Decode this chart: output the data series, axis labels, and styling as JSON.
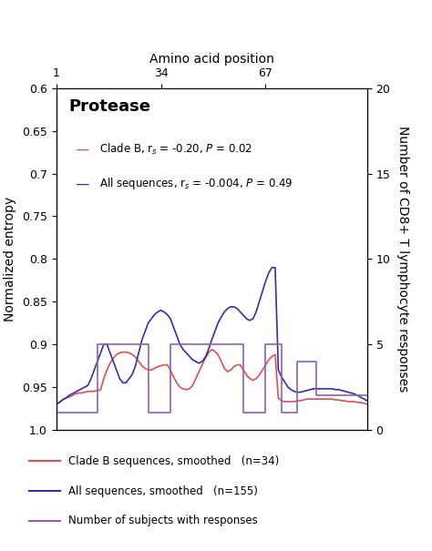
{
  "title": "Protease",
  "xlabel_top": "Amino acid position",
  "ylabel_left": "Normalized entropy",
  "ylabel_right": "Number of CD8+ T lymphocyte responses",
  "ylim_left": [
    1.0,
    0.6
  ],
  "ylim_right": [
    0,
    20
  ],
  "xlim": [
    1,
    99
  ],
  "xticks_top": [
    1,
    34,
    67
  ],
  "yticks_left": [
    0.6,
    0.65,
    0.7,
    0.75,
    0.8,
    0.85,
    0.9,
    0.95,
    1.0
  ],
  "yticks_right": [
    0,
    5,
    10,
    15,
    20
  ],
  "legend_inside": [
    {
      "label": "Clade B, r_s = -0.20, P = 0.02",
      "color": "#e05050"
    },
    {
      "label": "All sequences, r_s = -0.004, P = 0.49",
      "color": "#3030b0"
    }
  ],
  "legend_below": [
    {
      "label": "Clade B sequences, smoothed   (n=34)",
      "color": "#e05050"
    },
    {
      "label": "All sequences, smoothed   (n=155)",
      "color": "#3030b0"
    },
    {
      "label": "Number of subjects with responses",
      "color": "#9060b0"
    }
  ],
  "clade_b_x": [
    1,
    2,
    3,
    4,
    5,
    6,
    7,
    8,
    9,
    10,
    11,
    12,
    13,
    14,
    15,
    16,
    17,
    18,
    19,
    20,
    21,
    22,
    23,
    24,
    25,
    26,
    27,
    28,
    29,
    30,
    31,
    32,
    33,
    34,
    35,
    36,
    37,
    38,
    39,
    40,
    41,
    42,
    43,
    44,
    45,
    46,
    47,
    48,
    49,
    50,
    51,
    52,
    53,
    54,
    55,
    56,
    57,
    58,
    59,
    60,
    61,
    62,
    63,
    64,
    65,
    66,
    67,
    68,
    69,
    70,
    71,
    72,
    73,
    74,
    75,
    76,
    77,
    78,
    79,
    80,
    81,
    82,
    83,
    84,
    85,
    86,
    87,
    88,
    89,
    90,
    91,
    92,
    93,
    94,
    95,
    96,
    97,
    98,
    99
  ],
  "clade_b_y": [
    0.97,
    0.968,
    0.965,
    0.963,
    0.962,
    0.96,
    0.958,
    0.957,
    0.957,
    0.956,
    0.955,
    0.955,
    0.955,
    0.954,
    0.953,
    0.94,
    0.93,
    0.922,
    0.916,
    0.912,
    0.91,
    0.909,
    0.909,
    0.91,
    0.912,
    0.915,
    0.92,
    0.925,
    0.928,
    0.93,
    0.93,
    0.928,
    0.926,
    0.925,
    0.924,
    0.924,
    0.93,
    0.938,
    0.945,
    0.95,
    0.952,
    0.953,
    0.952,
    0.948,
    0.94,
    0.932,
    0.924,
    0.916,
    0.91,
    0.906,
    0.908,
    0.912,
    0.92,
    0.928,
    0.932,
    0.93,
    0.926,
    0.924,
    0.924,
    0.93,
    0.936,
    0.94,
    0.942,
    0.94,
    0.936,
    0.93,
    0.924,
    0.918,
    0.914,
    0.912,
    0.963,
    0.966,
    0.967,
    0.967,
    0.967,
    0.967,
    0.966,
    0.966,
    0.965,
    0.964,
    0.964,
    0.964,
    0.964,
    0.964,
    0.964,
    0.964,
    0.964,
    0.964,
    0.965,
    0.965,
    0.966,
    0.966,
    0.967,
    0.967,
    0.967,
    0.968,
    0.968,
    0.969,
    0.97
  ],
  "all_seq_x": [
    1,
    2,
    3,
    4,
    5,
    6,
    7,
    8,
    9,
    10,
    11,
    12,
    13,
    14,
    15,
    16,
    17,
    18,
    19,
    20,
    21,
    22,
    23,
    24,
    25,
    26,
    27,
    28,
    29,
    30,
    31,
    32,
    33,
    34,
    35,
    36,
    37,
    38,
    39,
    40,
    41,
    42,
    43,
    44,
    45,
    46,
    47,
    48,
    49,
    50,
    51,
    52,
    53,
    54,
    55,
    56,
    57,
    58,
    59,
    60,
    61,
    62,
    63,
    64,
    65,
    66,
    67,
    68,
    69,
    70,
    71,
    72,
    73,
    74,
    75,
    76,
    77,
    78,
    79,
    80,
    81,
    82,
    83,
    84,
    85,
    86,
    87,
    88,
    89,
    90,
    91,
    92,
    93,
    94,
    95,
    96,
    97,
    98,
    99
  ],
  "all_seq_y": [
    0.97,
    0.968,
    0.965,
    0.963,
    0.96,
    0.958,
    0.956,
    0.954,
    0.952,
    0.95,
    0.948,
    0.94,
    0.93,
    0.92,
    0.91,
    0.9,
    0.9,
    0.91,
    0.92,
    0.93,
    0.94,
    0.945,
    0.945,
    0.94,
    0.935,
    0.925,
    0.91,
    0.895,
    0.885,
    0.875,
    0.87,
    0.865,
    0.862,
    0.86,
    0.862,
    0.865,
    0.87,
    0.88,
    0.89,
    0.9,
    0.906,
    0.91,
    0.914,
    0.918,
    0.92,
    0.922,
    0.92,
    0.915,
    0.906,
    0.895,
    0.885,
    0.875,
    0.868,
    0.862,
    0.858,
    0.856,
    0.856,
    0.858,
    0.862,
    0.866,
    0.87,
    0.872,
    0.87,
    0.862,
    0.85,
    0.838,
    0.826,
    0.816,
    0.81,
    0.81,
    0.93,
    0.938,
    0.944,
    0.95,
    0.953,
    0.955,
    0.956,
    0.956,
    0.955,
    0.954,
    0.953,
    0.952,
    0.952,
    0.952,
    0.952,
    0.952,
    0.952,
    0.952,
    0.953,
    0.953,
    0.954,
    0.955,
    0.956,
    0.957,
    0.958,
    0.96,
    0.962,
    0.964,
    0.966
  ],
  "purple_x": [
    1,
    2,
    3,
    4,
    5,
    6,
    7,
    8,
    9,
    10,
    11,
    12,
    13,
    14,
    15,
    16,
    17,
    18,
    19,
    20,
    21,
    22,
    23,
    24,
    25,
    26,
    27,
    28,
    29,
    30,
    31,
    32,
    33,
    34,
    35,
    36,
    37,
    38,
    39,
    40,
    41,
    42,
    43,
    44,
    45,
    46,
    47,
    48,
    49,
    50,
    51,
    52,
    53,
    54,
    55,
    56,
    57,
    58,
    59,
    60,
    61,
    62,
    63,
    64,
    65,
    66,
    67,
    68,
    69,
    70,
    71,
    72,
    73,
    74,
    75,
    76,
    77,
    78,
    79,
    80,
    81,
    82,
    83,
    84,
    85,
    86,
    87,
    88,
    89,
    90,
    91,
    92,
    93,
    94,
    95,
    96,
    97,
    98,
    99
  ],
  "purple_y": [
    1,
    1,
    1,
    1,
    1,
    1,
    1,
    1,
    1,
    1,
    1,
    1,
    1,
    5,
    5,
    5,
    5,
    5,
    5,
    5,
    5,
    5,
    5,
    5,
    5,
    5,
    5,
    5,
    5,
    1,
    1,
    1,
    1,
    1,
    1,
    1,
    5,
    5,
    5,
    5,
    5,
    5,
    5,
    5,
    5,
    5,
    5,
    5,
    5,
    5,
    5,
    5,
    5,
    5,
    5,
    5,
    5,
    5,
    5,
    1,
    1,
    1,
    1,
    1,
    1,
    1,
    5,
    5,
    5,
    5,
    5,
    1,
    1,
    1,
    1,
    1,
    4,
    4,
    4,
    4,
    4,
    4,
    2,
    2,
    2,
    2,
    2,
    2,
    2,
    2,
    2,
    2,
    2,
    2,
    2,
    2,
    2,
    2,
    2
  ]
}
